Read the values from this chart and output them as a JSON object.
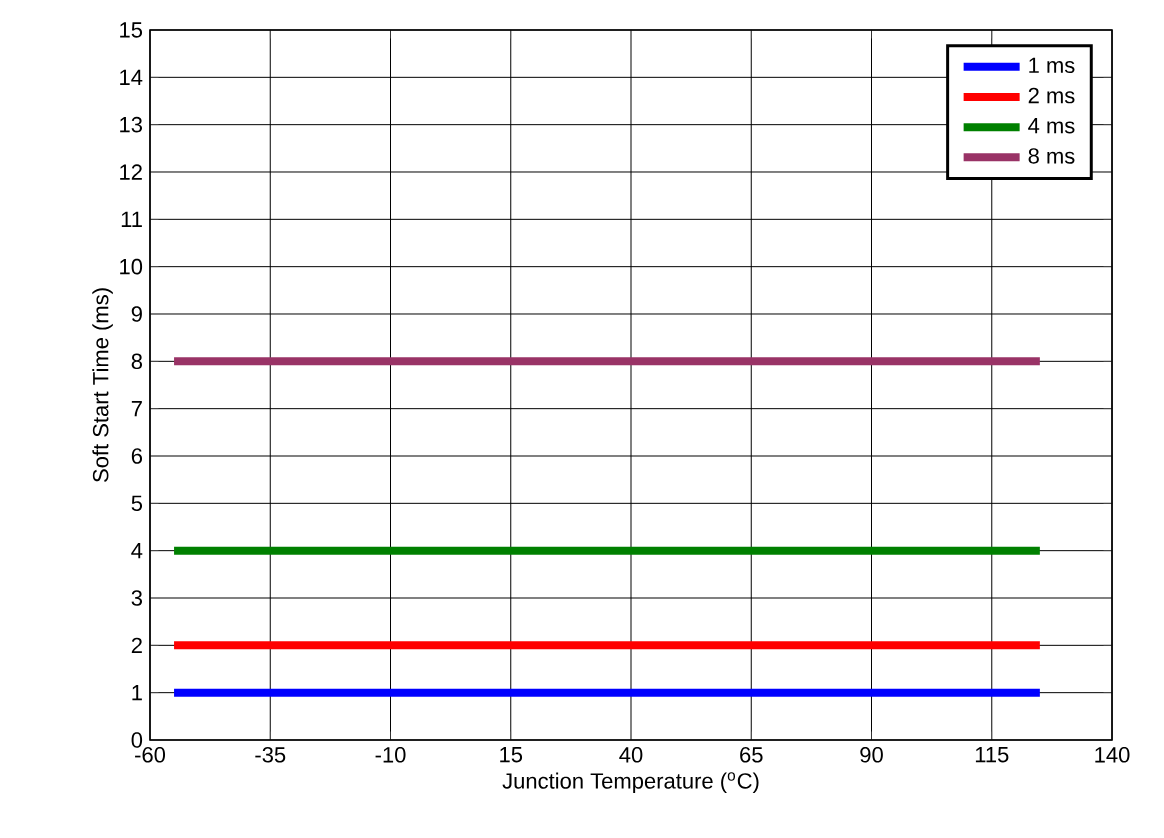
{
  "chart_data": {
    "type": "line",
    "xlabel": "Junction Temperature ($^{o}$C)",
    "ylabel": "Soft Start Time (ms)",
    "xlim": [
      -60,
      140
    ],
    "xticks": [
      -60,
      -35,
      -10,
      15,
      40,
      65,
      90,
      115,
      140
    ],
    "ylim": [
      0,
      15
    ],
    "yticks": [
      0,
      1,
      2,
      3,
      4,
      5,
      6,
      7,
      8,
      9,
      10,
      11,
      12,
      13,
      14,
      15
    ],
    "grid": true,
    "legend": "top right",
    "marker": "none",
    "line_style": "solid",
    "x": [
      -55,
      125
    ],
    "series": [
      {
        "name": "1 ms",
        "color": "#0000ff",
        "values": [
          1,
          1
        ]
      },
      {
        "name": "2 ms",
        "color": "#ff0000",
        "values": [
          2,
          2
        ]
      },
      {
        "name": "4 ms",
        "color": "#008000",
        "values": [
          4,
          4
        ]
      },
      {
        "name": "8 ms",
        "color": "#993366",
        "values": [
          8,
          8
        ]
      }
    ]
  }
}
